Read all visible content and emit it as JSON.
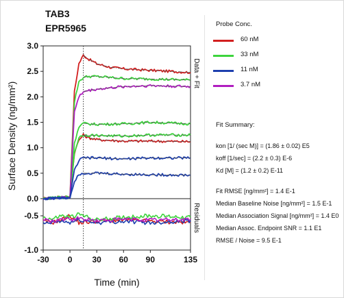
{
  "header": {
    "line1": "TAB3",
    "line2": "EPR5965"
  },
  "legend": {
    "title": "Probe Conc.",
    "items": [
      {
        "label": "60 nM",
        "color": "#d21f1f"
      },
      {
        "label": "33 nM",
        "color": "#3cd43c"
      },
      {
        "label": "11 nM",
        "color": "#1d3fae"
      },
      {
        "label": "3.7 nM",
        "color": "#b01dc0"
      }
    ]
  },
  "fit_summary": {
    "heading": "Fit Summary:",
    "params": [
      "kon  [1/ (sec M)]  =   (1.86 ± 0.02) E5",
      "koff  [1/sec]  =   (2.2 ± 0.3) E-6",
      "Kd  [M]  =   (1.2 ± 0.2) E-11"
    ],
    "stats": [
      "Fit RMSE  [ng/mm²]  =   1.4 E-1",
      "Median Baseline Noise [ng/mm²]  =   1.5 E-1",
      "Median Association Signal [ng/mm²]  =   1.4 E0",
      "Median Assoc. Endpoint SNR  =   1.1 E1",
      "RMSE / Noise  =   9.5 E-1"
    ]
  },
  "chart_data": {
    "type": "line",
    "xlabel": "Time (min)",
    "ylabel": "Surface Density (ng/mm²)",
    "panel_labels": {
      "top": "Data + Fit",
      "bottom": "Residuals"
    },
    "xlim": [
      -30,
      135
    ],
    "x_ticks": [
      -30,
      0,
      30,
      60,
      90,
      135
    ],
    "x_tick_labels": [
      "-30",
      "0",
      "30",
      "60",
      "90",
      "135"
    ],
    "y_ticks": [
      -1.0,
      -0.5,
      0.0,
      0.5,
      1.0,
      1.5,
      2.0,
      2.5,
      3.0
    ],
    "y_tick_labels": [
      "-1.0",
      "-0.5",
      "0.0",
      "0.5",
      "1.0",
      "1.5",
      "2.0",
      "2.5",
      "3.0"
    ],
    "upper_ylim": [
      0,
      3.0
    ],
    "lower_ylim": [
      -1.0,
      -0.25
    ],
    "injection_end_x": 15,
    "series": [
      {
        "name": "60 nM",
        "color": "#d21f1f",
        "data": [
          [
            -30,
            0.0
          ],
          [
            0,
            0.05
          ],
          [
            5,
            2.1
          ],
          [
            10,
            2.65
          ],
          [
            15,
            2.82
          ],
          [
            20,
            2.75
          ],
          [
            30,
            2.65
          ],
          [
            45,
            2.58
          ],
          [
            60,
            2.55
          ],
          [
            90,
            2.52
          ],
          [
            135,
            2.48
          ]
        ]
      },
      {
        "name": "60 nM",
        "color": "#d21f1f",
        "data": [
          [
            -30,
            0.0
          ],
          [
            0,
            0.03
          ],
          [
            5,
            0.9
          ],
          [
            10,
            1.15
          ],
          [
            15,
            1.25
          ],
          [
            20,
            1.2
          ],
          [
            30,
            1.16
          ],
          [
            60,
            1.13
          ],
          [
            90,
            1.13
          ],
          [
            135,
            1.12
          ]
        ]
      },
      {
        "name": "33 nM",
        "color": "#3cd43c",
        "data": [
          [
            -30,
            0.0
          ],
          [
            0,
            0.04
          ],
          [
            5,
            1.9
          ],
          [
            10,
            2.3
          ],
          [
            15,
            2.38
          ],
          [
            20,
            2.4
          ],
          [
            30,
            2.4
          ],
          [
            60,
            2.36
          ],
          [
            90,
            2.35
          ],
          [
            135,
            2.33
          ]
        ]
      },
      {
        "name": "33 nM",
        "color": "#3cd43c",
        "data": [
          [
            -30,
            0.0
          ],
          [
            0,
            0.03
          ],
          [
            5,
            1.1
          ],
          [
            10,
            1.4
          ],
          [
            15,
            1.48
          ],
          [
            20,
            1.47
          ],
          [
            30,
            1.46
          ],
          [
            60,
            1.47
          ],
          [
            90,
            1.5
          ],
          [
            135,
            1.47
          ]
        ]
      },
      {
        "name": "33 nM",
        "color": "#3cd43c",
        "data": [
          [
            -30,
            0.0
          ],
          [
            0,
            0.03
          ],
          [
            5,
            0.9
          ],
          [
            10,
            1.2
          ],
          [
            15,
            1.25
          ],
          [
            30,
            1.24
          ],
          [
            60,
            1.23
          ],
          [
            90,
            1.25
          ],
          [
            135,
            1.25
          ]
        ]
      },
      {
        "name": "3.7 nM",
        "color": "#b01dc0",
        "data": [
          [
            -30,
            0.0
          ],
          [
            0,
            0.03
          ],
          [
            5,
            1.7
          ],
          [
            10,
            2.0
          ],
          [
            15,
            2.1
          ],
          [
            20,
            2.12
          ],
          [
            30,
            2.15
          ],
          [
            60,
            2.2
          ],
          [
            90,
            2.22
          ],
          [
            135,
            2.2
          ]
        ]
      },
      {
        "name": "11 nM",
        "color": "#1d3fae",
        "data": [
          [
            -30,
            0.0
          ],
          [
            0,
            0.02
          ],
          [
            5,
            0.55
          ],
          [
            10,
            0.75
          ],
          [
            15,
            0.8
          ],
          [
            30,
            0.8
          ],
          [
            60,
            0.78
          ],
          [
            90,
            0.8
          ],
          [
            135,
            0.8
          ]
        ]
      },
      {
        "name": "11 nM",
        "color": "#1d3fae",
        "data": [
          [
            -30,
            0.0
          ],
          [
            0,
            0.02
          ],
          [
            5,
            0.35
          ],
          [
            10,
            0.48
          ],
          [
            15,
            0.5
          ],
          [
            30,
            0.5
          ],
          [
            60,
            0.48
          ],
          [
            90,
            0.47
          ],
          [
            135,
            0.46
          ]
        ]
      }
    ],
    "residuals": [
      {
        "name": "60 nM",
        "color": "#d21f1f",
        "data": [
          [
            -30,
            -0.58
          ],
          [
            -20,
            -0.6
          ],
          [
            -10,
            -0.56
          ],
          [
            0,
            -0.5
          ],
          [
            10,
            -0.6
          ],
          [
            30,
            -0.58
          ],
          [
            60,
            -0.56
          ],
          [
            90,
            -0.58
          ],
          [
            135,
            -0.6
          ]
        ]
      },
      {
        "name": "33 nM",
        "color": "#3cd43c",
        "data": [
          [
            -30,
            -0.52
          ],
          [
            -20,
            -0.55
          ],
          [
            -10,
            -0.5
          ],
          [
            0,
            -0.52
          ],
          [
            10,
            -0.48
          ],
          [
            30,
            -0.56
          ],
          [
            60,
            -0.52
          ],
          [
            90,
            -0.5
          ],
          [
            135,
            -0.52
          ]
        ]
      },
      {
        "name": "11 nM",
        "color": "#1d3fae",
        "data": [
          [
            -30,
            -0.62
          ],
          [
            -20,
            -0.6
          ],
          [
            -10,
            -0.58
          ],
          [
            0,
            -0.6
          ],
          [
            10,
            -0.56
          ],
          [
            30,
            -0.6
          ],
          [
            60,
            -0.58
          ],
          [
            90,
            -0.6
          ],
          [
            135,
            -0.57
          ]
        ]
      },
      {
        "name": "3.7 nM",
        "color": "#b01dc0",
        "data": [
          [
            -30,
            -0.56
          ],
          [
            -20,
            -0.58
          ],
          [
            -10,
            -0.55
          ],
          [
            0,
            -0.56
          ],
          [
            10,
            -0.54
          ],
          [
            30,
            -0.57
          ],
          [
            60,
            -0.55
          ],
          [
            90,
            -0.56
          ],
          [
            135,
            -0.55
          ]
        ]
      }
    ]
  }
}
